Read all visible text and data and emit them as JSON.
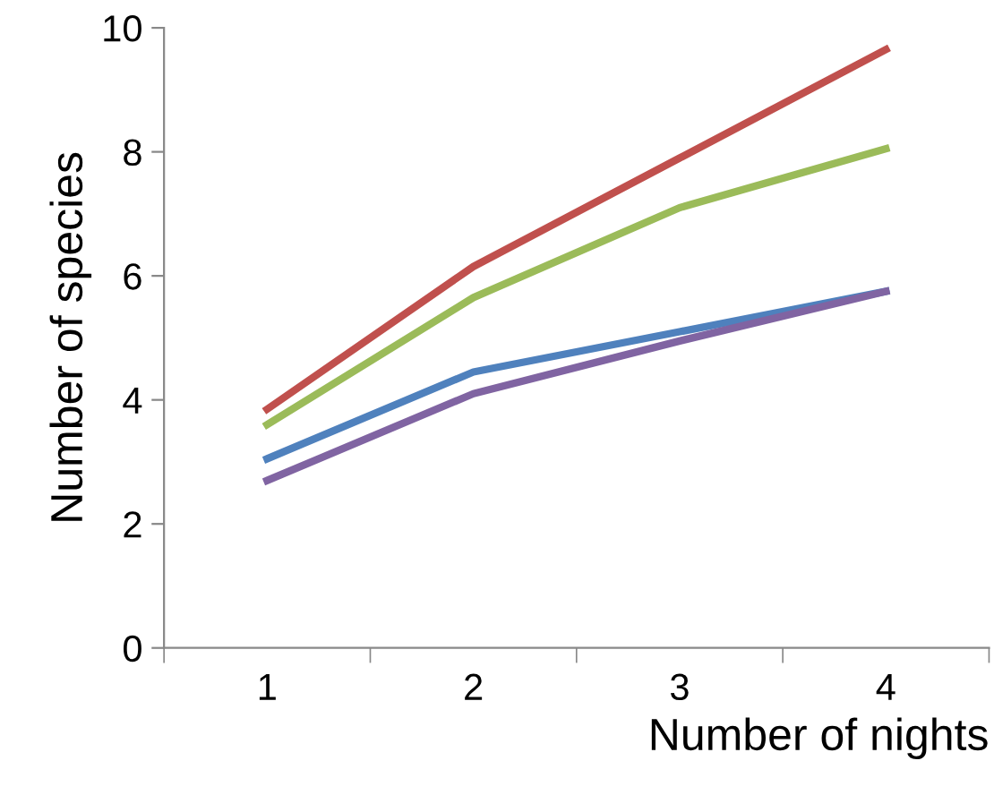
{
  "chart_data": {
    "type": "line",
    "xlabel": "Number of nights",
    "ylabel": "Number of species",
    "categories": [
      "1",
      "2",
      "3",
      "4"
    ],
    "series": [
      {
        "color": "#c0504d",
        "values": [
          3.85,
          6.15,
          7.9,
          9.65
        ]
      },
      {
        "color": "#9bbb59",
        "values": [
          3.6,
          5.65,
          7.1,
          8.05
        ]
      },
      {
        "color": "#4f81bd",
        "values": [
          3.05,
          4.45,
          5.1,
          5.75
        ]
      },
      {
        "color": "#8064a2",
        "values": [
          2.7,
          4.1,
          4.95,
          5.75
        ]
      }
    ],
    "ylim": [
      0,
      10
    ],
    "yticks": [
      0,
      2,
      4,
      6,
      8,
      10
    ],
    "grid": false,
    "legend": false,
    "marker": "none",
    "line_style": "solid"
  }
}
